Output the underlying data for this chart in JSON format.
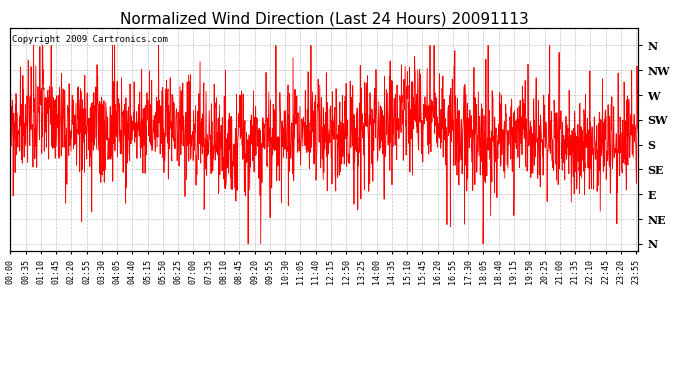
{
  "title": "Normalized Wind Direction (Last 24 Hours) 20091113",
  "copyright": "Copyright 2009 Cartronics.com",
  "line_color": "red",
  "background_color": "white",
  "grid_color": "#bbbbbb",
  "ytick_labels": [
    "N",
    "NW",
    "W",
    "SW",
    "S",
    "SE",
    "E",
    "NE",
    "N"
  ],
  "ytick_values": [
    8,
    7,
    6,
    5,
    4,
    3,
    2,
    1,
    0
  ],
  "ylim": [
    -0.3,
    8.7
  ],
  "title_fontsize": 11,
  "tick_fontsize": 6,
  "copyright_fontsize": 6.5,
  "ytick_fontsize": 8,
  "xtick_interval_minutes": 35,
  "total_minutes": 1440,
  "num_points": 2000
}
